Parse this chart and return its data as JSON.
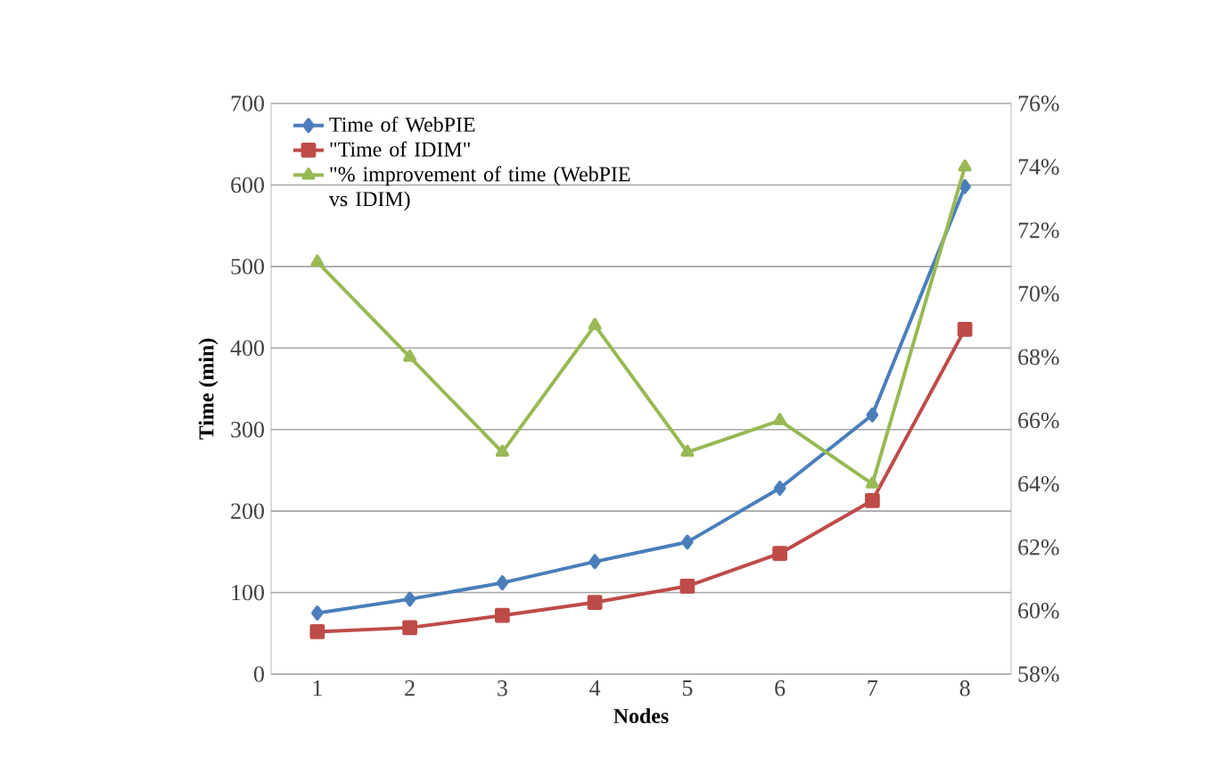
{
  "chart_data": {
    "type": "line",
    "xlabel": "Nodes",
    "ylabel": "Time (min)",
    "categories": [
      "1",
      "2",
      "3",
      "4",
      "5",
      "6",
      "7",
      "8"
    ],
    "ylim": [
      0,
      700
    ],
    "yticks": [
      0,
      100,
      200,
      300,
      400,
      500,
      600,
      700
    ],
    "y2lim": [
      58,
      76
    ],
    "y2ticks": [
      {
        "value": 58,
        "label": "58%"
      },
      {
        "value": 60,
        "label": "60%"
      },
      {
        "value": 62,
        "label": "62%"
      },
      {
        "value": 64,
        "label": "64%"
      },
      {
        "value": 66,
        "label": "66%"
      },
      {
        "value": 68,
        "label": "68%"
      },
      {
        "value": 70,
        "label": "70%"
      },
      {
        "value": 72,
        "label": "72%"
      },
      {
        "value": 74,
        "label": "74%"
      },
      {
        "value": 76,
        "label": "76%"
      }
    ],
    "grid": "y",
    "legend": "top left",
    "series": [
      {
        "name": "Time of WebPIE",
        "color": "#4a7ebb",
        "marker": "diamond",
        "values": [
          75,
          92,
          112,
          138,
          162,
          228,
          318,
          598
        ]
      },
      {
        "name": "\"Time of IDIM\"",
        "color": "#be4b48",
        "marker": "square",
        "values": [
          52,
          57,
          72,
          88,
          108,
          148,
          213,
          423
        ]
      },
      {
        "name": "\"% improvement of time (WebPIE vs IDIM)",
        "color": "#98b954",
        "marker": "triangle",
        "axis": "y2",
        "values": [
          71,
          68,
          65,
          69,
          65,
          66,
          64,
          74
        ]
      }
    ]
  }
}
